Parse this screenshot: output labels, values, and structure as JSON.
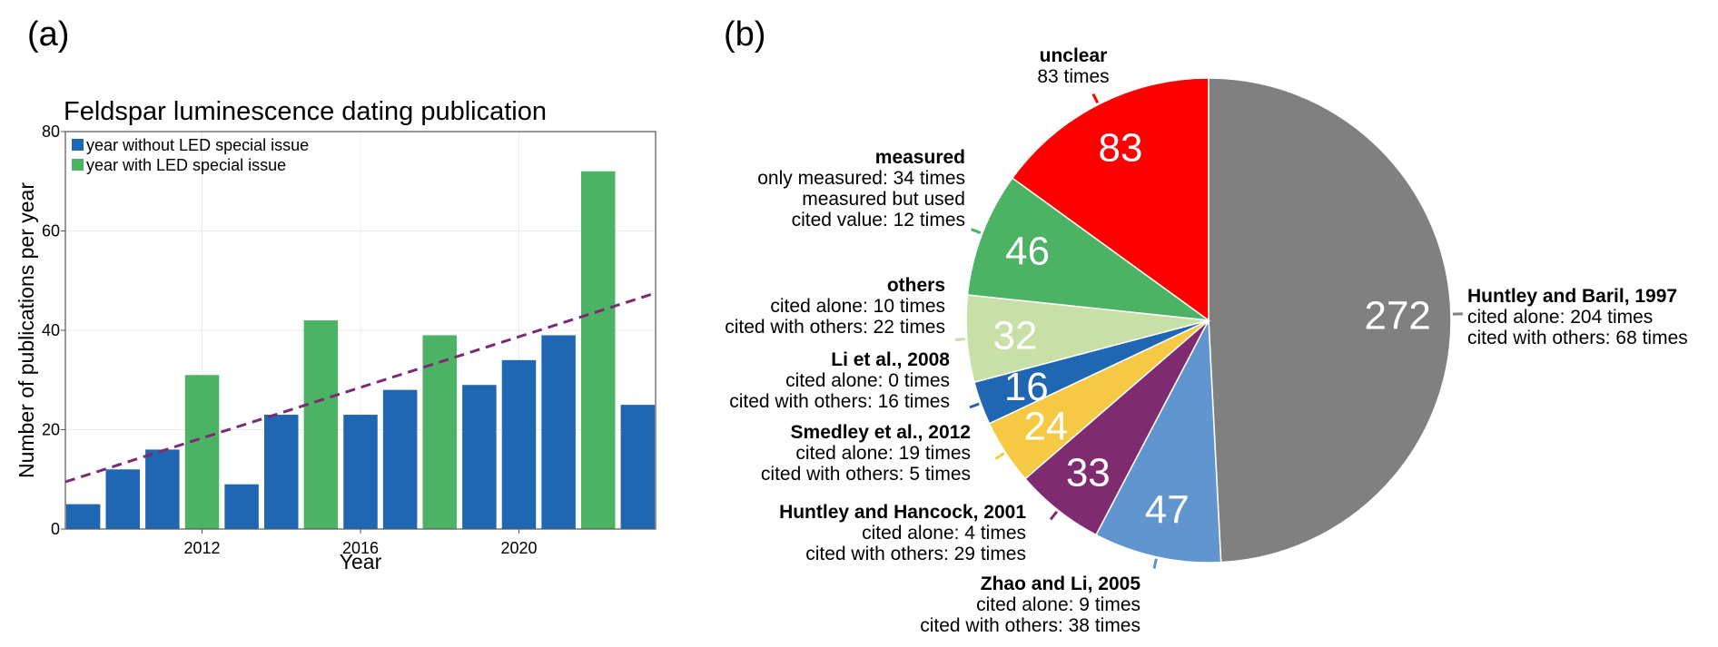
{
  "panel_a": "(a)",
  "panel_b": "(b)",
  "chart_data": [
    {
      "type": "bar",
      "title": "Feldspar luminescence dating publication",
      "xlabel": "Year",
      "ylabel": "Number of publications per year",
      "x": [
        2009,
        2010,
        2011,
        2012,
        2013,
        2014,
        2015,
        2016,
        2017,
        2018,
        2019,
        2020,
        2021,
        2022,
        2023
      ],
      "values": [
        5,
        12,
        16,
        31,
        9,
        23,
        42,
        23,
        28,
        39,
        29,
        34,
        39,
        72,
        25
      ],
      "led_issue": [
        false,
        false,
        false,
        true,
        false,
        false,
        true,
        false,
        false,
        true,
        false,
        false,
        false,
        true,
        false
      ],
      "xticks": [
        "2012",
        "2016",
        "2020"
      ],
      "yticks": [
        "0",
        "20",
        "40",
        "60",
        "80"
      ],
      "ylim": [
        0,
        80
      ],
      "xlim": [
        2008.55,
        2023.45
      ],
      "grid": true,
      "legend_position": "top-left",
      "legend": [
        {
          "label": "year without LED special issue",
          "color": "#1f66b3"
        },
        {
          "label": "year with LED special issue",
          "color": "#4db364"
        }
      ],
      "trendline": {
        "style": "dashed",
        "color": "#7b2a73",
        "x": [
          2008.55,
          2023.45
        ],
        "y": [
          9.5,
          47.5
        ]
      }
    },
    {
      "type": "pie",
      "slices": [
        {
          "label": "272",
          "value": 272,
          "color": "#808080",
          "title": "Huntley and Baril, 1997",
          "lines": [
            "cited alone: 204 times",
            "cited with others: 68 times"
          ]
        },
        {
          "label": "47",
          "value": 47,
          "color": "#6095d0",
          "title": "Zhao and Li, 2005",
          "lines": [
            "cited alone: 9 times",
            "cited with others: 38 times"
          ]
        },
        {
          "label": "33",
          "value": 33,
          "color": "#7f2b6f",
          "title": "Huntley and Hancock, 2001",
          "lines": [
            "cited alone: 4 times",
            "cited with others: 29 times"
          ]
        },
        {
          "label": "24",
          "value": 24,
          "color": "#f6c945",
          "title": "Smedley et al., 2012",
          "lines": [
            "cited alone: 19 times",
            "cited with others: 5 times"
          ]
        },
        {
          "label": "16",
          "value": 16,
          "color": "#1f66b3",
          "title": "Li et al., 2008",
          "lines": [
            "cited alone: 0 times",
            "cited with others: 16 times"
          ]
        },
        {
          "label": "32",
          "value": 32,
          "color": "#c8e0a8",
          "title": "others",
          "lines": [
            "cited alone: 10 times",
            "cited with others: 22 times"
          ]
        },
        {
          "label": "46",
          "value": 46,
          "color": "#4db364",
          "title": "measured",
          "lines": [
            "only measured: 34 times",
            "measured but used",
            "cited value: 12 times"
          ]
        },
        {
          "label": "83",
          "value": 83,
          "color": "#ff0000",
          "title": "unclear",
          "lines": [
            "83 times"
          ]
        }
      ]
    }
  ]
}
